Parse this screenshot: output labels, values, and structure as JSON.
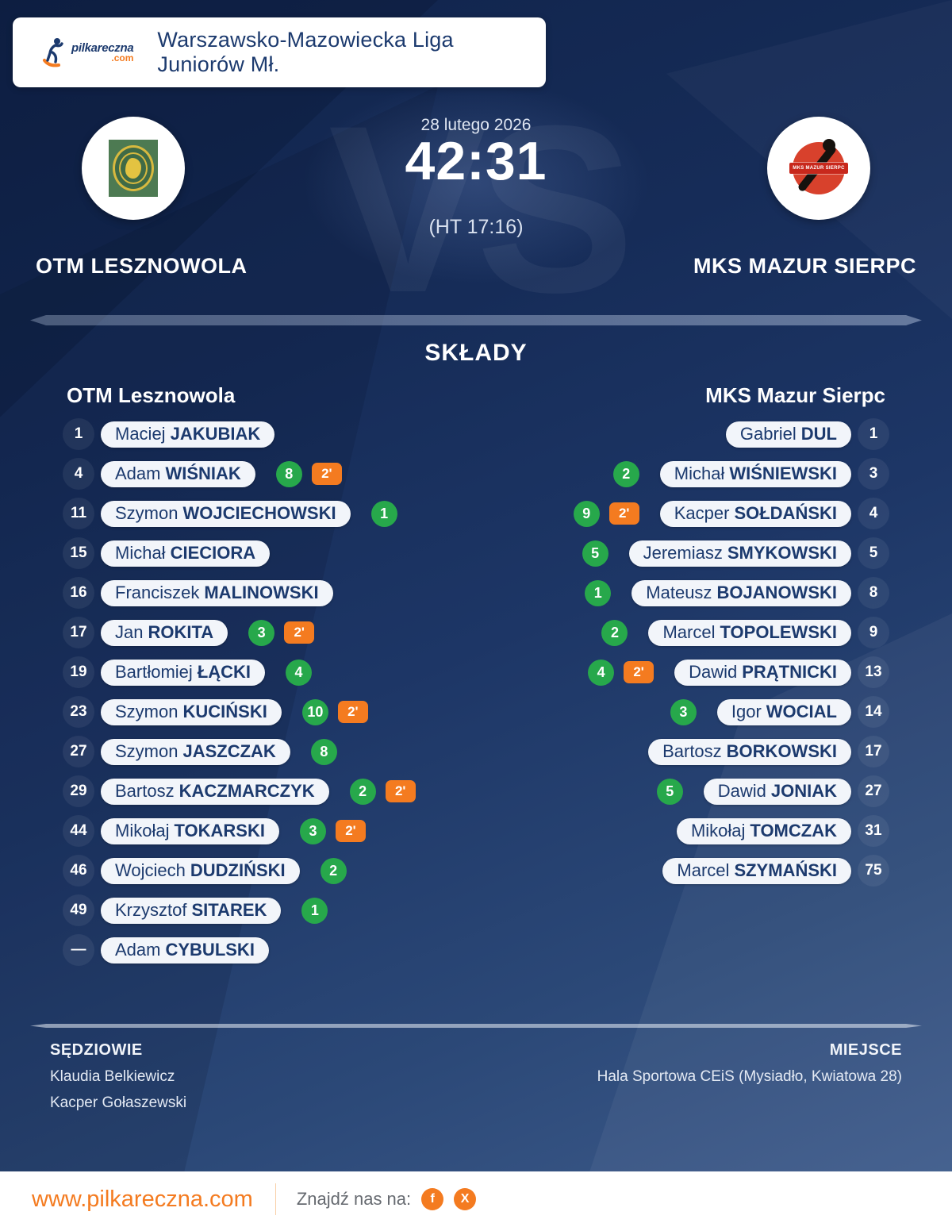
{
  "header": {
    "logo_name": "pilkareczna",
    "logo_tld": ".com",
    "league": "Warszawsko-Mazowiecka Liga Juniorów Mł."
  },
  "match": {
    "date": "28 lutego 2026",
    "score": "42:31",
    "halftime": "(HT 17:16)",
    "vs_watermark": "VS"
  },
  "teams": {
    "home": {
      "name": "OTM LESZNOWOLA",
      "lineup_title": "OTM Lesznowola"
    },
    "away": {
      "name": "MKS MAZUR SIERPC",
      "lineup_title": "MKS Mazur Sierpc",
      "crest_band": "MKS MAZUR SIERPC"
    }
  },
  "lineups": {
    "section_title": "SKŁADY",
    "home": [
      {
        "number": "1",
        "first": "Maciej",
        "last": "JAKUBIAK",
        "goals": null,
        "suspension": null
      },
      {
        "number": "4",
        "first": "Adam",
        "last": "WIŚNIAK",
        "goals": "8",
        "suspension": "2'"
      },
      {
        "number": "11",
        "first": "Szymon",
        "last": "WOJCIECHOWSKI",
        "goals": "1",
        "suspension": null
      },
      {
        "number": "15",
        "first": "Michał",
        "last": "CIECIORA",
        "goals": null,
        "suspension": null
      },
      {
        "number": "16",
        "first": "Franciszek",
        "last": "MALINOWSKI",
        "goals": null,
        "suspension": null
      },
      {
        "number": "17",
        "first": "Jan",
        "last": "ROKITA",
        "goals": "3",
        "suspension": "2'"
      },
      {
        "number": "19",
        "first": "Bartłomiej",
        "last": "ŁĄCKI",
        "goals": "4",
        "suspension": null
      },
      {
        "number": "23",
        "first": "Szymon",
        "last": "KUCIŃSKI",
        "goals": "10",
        "suspension": "2'"
      },
      {
        "number": "27",
        "first": "Szymon",
        "last": "JASZCZAK",
        "goals": "8",
        "suspension": null
      },
      {
        "number": "29",
        "first": "Bartosz",
        "last": "KACZMARCZYK",
        "goals": "2",
        "suspension": "2'"
      },
      {
        "number": "44",
        "first": "Mikołaj",
        "last": "TOKARSKI",
        "goals": "3",
        "suspension": "2'"
      },
      {
        "number": "46",
        "first": "Wojciech",
        "last": "DUDZIŃSKI",
        "goals": "2",
        "suspension": null
      },
      {
        "number": "49",
        "first": "Krzysztof",
        "last": "SITAREK",
        "goals": "1",
        "suspension": null
      },
      {
        "number": "—",
        "first": "Adam",
        "last": "CYBULSKI",
        "goals": null,
        "suspension": null
      }
    ],
    "away": [
      {
        "number": "1",
        "first": "Gabriel",
        "last": "DUL",
        "goals": null,
        "suspension": null
      },
      {
        "number": "3",
        "first": "Michał",
        "last": "WIŚNIEWSKI",
        "goals": "2",
        "suspension": null
      },
      {
        "number": "4",
        "first": "Kacper",
        "last": "SOŁDAŃSKI",
        "goals": "9",
        "suspension": "2'"
      },
      {
        "number": "5",
        "first": "Jeremiasz",
        "last": "SMYKOWSKI",
        "goals": "5",
        "suspension": null
      },
      {
        "number": "8",
        "first": "Mateusz",
        "last": "BOJANOWSKI",
        "goals": "1",
        "suspension": null
      },
      {
        "number": "9",
        "first": "Marcel",
        "last": "TOPOLEWSKI",
        "goals": "2",
        "suspension": null
      },
      {
        "number": "13",
        "first": "Dawid",
        "last": "PRĄTNICKI",
        "goals": "4",
        "suspension": "2'"
      },
      {
        "number": "14",
        "first": "Igor",
        "last": "WOCIAL",
        "goals": "3",
        "suspension": null
      },
      {
        "number": "17",
        "first": "Bartosz",
        "last": "BORKOWSKI",
        "goals": null,
        "suspension": null
      },
      {
        "number": "27",
        "first": "Dawid",
        "last": "JONIAK",
        "goals": "5",
        "suspension": null
      },
      {
        "number": "31",
        "first": "Mikołaj",
        "last": "TOMCZAK",
        "goals": null,
        "suspension": null
      },
      {
        "number": "75",
        "first": "Marcel",
        "last": "SZYMAŃSKI",
        "goals": null,
        "suspension": null
      }
    ]
  },
  "footer": {
    "referees_label": "SĘDZIOWIE",
    "referees": [
      "Klaudia Belkiewicz",
      "Kacper Gołaszewski"
    ],
    "venue_label": "MIEJSCE",
    "venue": "Hala Sportowa CEiS (Mysiadło, Kwiatowa 28)"
  },
  "bottom_bar": {
    "website": "www.pilkareczna.com",
    "find_us": "Znajdź nas na:",
    "social": [
      {
        "name": "facebook",
        "glyph": "f"
      },
      {
        "name": "x",
        "glyph": "X"
      }
    ]
  },
  "colors": {
    "accent_orange": "#f47b20",
    "goal_green": "#27a84b",
    "navy_text": "#1c3a6e",
    "pill_bg": "#f2f5fa",
    "background_top": "#10234a",
    "background_bottom": "#3f5d8d"
  }
}
